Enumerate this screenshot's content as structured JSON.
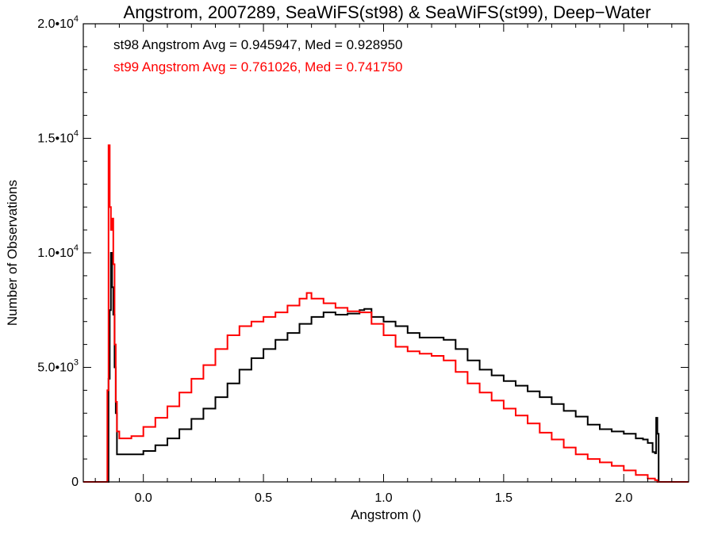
{
  "chart_data": {
    "type": "line",
    "title": "Angstrom, 2007289, SeaWiFS(st98) & SeaWiFS(st99), Deep−Water",
    "xlabel": "Angstrom ()",
    "ylabel": "Number of Observations",
    "xlim": [
      -0.25,
      2.27
    ],
    "ylim": [
      0,
      20000
    ],
    "grid": false,
    "x_ticks": [
      {
        "value": 0.0,
        "label": "0.0"
      },
      {
        "value": 0.5,
        "label": "0.5"
      },
      {
        "value": 1.0,
        "label": "1.0"
      },
      {
        "value": 1.5,
        "label": "1.5"
      },
      {
        "value": 2.0,
        "label": "2.0"
      }
    ],
    "y_ticks": [
      {
        "value": 0,
        "base": "0",
        "exp": ""
      },
      {
        "value": 5000,
        "base": "5.0•10",
        "exp": "3"
      },
      {
        "value": 10000,
        "base": "1.0•10",
        "exp": "4"
      },
      {
        "value": 15000,
        "base": "1.5•10",
        "exp": "4"
      },
      {
        "value": 20000,
        "base": "2.0•10",
        "exp": "4"
      }
    ],
    "annotations": [
      {
        "text": "st98 Angstrom Avg = 0.945947, Med = 0.928950",
        "color": "#000000"
      },
      {
        "text": "st99 Angstrom Avg = 0.761026, Med = 0.741750",
        "color": "#ff0000"
      }
    ],
    "series": [
      {
        "color": "#000000",
        "points": [
          [
            -0.25,
            0
          ],
          [
            -0.15,
            0
          ],
          [
            -0.145,
            4500
          ],
          [
            -0.14,
            7500
          ],
          [
            -0.135,
            10000
          ],
          [
            -0.13,
            8500
          ],
          [
            -0.125,
            7300
          ],
          [
            -0.12,
            5000
          ],
          [
            -0.115,
            3000
          ],
          [
            -0.11,
            1200
          ],
          [
            -0.1,
            1200
          ],
          [
            -0.05,
            1200
          ],
          [
            0.0,
            1350
          ],
          [
            0.05,
            1600
          ],
          [
            0.1,
            1900
          ],
          [
            0.15,
            2300
          ],
          [
            0.2,
            2750
          ],
          [
            0.25,
            3200
          ],
          [
            0.3,
            3700
          ],
          [
            0.35,
            4300
          ],
          [
            0.4,
            4900
          ],
          [
            0.45,
            5400
          ],
          [
            0.5,
            5800
          ],
          [
            0.55,
            6200
          ],
          [
            0.6,
            6500
          ],
          [
            0.65,
            6900
          ],
          [
            0.7,
            7200
          ],
          [
            0.75,
            7400
          ],
          [
            0.8,
            7300
          ],
          [
            0.85,
            7350
          ],
          [
            0.9,
            7500
          ],
          [
            0.92,
            7550
          ],
          [
            0.95,
            7200
          ],
          [
            1.0,
            7000
          ],
          [
            1.05,
            6800
          ],
          [
            1.1,
            6500
          ],
          [
            1.15,
            6300
          ],
          [
            1.2,
            6300
          ],
          [
            1.25,
            6200
          ],
          [
            1.3,
            5800
          ],
          [
            1.35,
            5300
          ],
          [
            1.4,
            4900
          ],
          [
            1.45,
            4650
          ],
          [
            1.5,
            4400
          ],
          [
            1.55,
            4200
          ],
          [
            1.6,
            3950
          ],
          [
            1.65,
            3700
          ],
          [
            1.7,
            3400
          ],
          [
            1.75,
            3100
          ],
          [
            1.8,
            2850
          ],
          [
            1.85,
            2500
          ],
          [
            1.9,
            2300
          ],
          [
            1.95,
            2200
          ],
          [
            2.0,
            2100
          ],
          [
            2.05,
            1900
          ],
          [
            2.08,
            1850
          ],
          [
            2.1,
            1700
          ],
          [
            2.12,
            1300
          ],
          [
            2.13,
            1250
          ],
          [
            2.135,
            2800
          ],
          [
            2.14,
            2100
          ],
          [
            2.145,
            0
          ],
          [
            2.27,
            0
          ]
        ]
      },
      {
        "color": "#ff0000",
        "points": [
          [
            -0.25,
            0
          ],
          [
            -0.155,
            0
          ],
          [
            -0.15,
            4000
          ],
          [
            -0.145,
            14700
          ],
          [
            -0.14,
            12000
          ],
          [
            -0.135,
            11000
          ],
          [
            -0.13,
            11500
          ],
          [
            -0.125,
            9500
          ],
          [
            -0.12,
            6000
          ],
          [
            -0.115,
            3500
          ],
          [
            -0.11,
            2200
          ],
          [
            -0.1,
            1900
          ],
          [
            -0.05,
            2000
          ],
          [
            0.0,
            2400
          ],
          [
            0.05,
            2800
          ],
          [
            0.1,
            3300
          ],
          [
            0.15,
            3900
          ],
          [
            0.2,
            4500
          ],
          [
            0.25,
            5100
          ],
          [
            0.3,
            5800
          ],
          [
            0.35,
            6400
          ],
          [
            0.4,
            6800
          ],
          [
            0.45,
            7000
          ],
          [
            0.5,
            7200
          ],
          [
            0.55,
            7400
          ],
          [
            0.6,
            7700
          ],
          [
            0.65,
            8000
          ],
          [
            0.68,
            8250
          ],
          [
            0.7,
            8000
          ],
          [
            0.75,
            7800
          ],
          [
            0.8,
            7600
          ],
          [
            0.85,
            7450
          ],
          [
            0.9,
            7400
          ],
          [
            0.95,
            6900
          ],
          [
            1.0,
            6400
          ],
          [
            1.05,
            5900
          ],
          [
            1.1,
            5700
          ],
          [
            1.15,
            5600
          ],
          [
            1.2,
            5500
          ],
          [
            1.25,
            5300
          ],
          [
            1.3,
            4800
          ],
          [
            1.35,
            4300
          ],
          [
            1.4,
            3900
          ],
          [
            1.45,
            3550
          ],
          [
            1.5,
            3200
          ],
          [
            1.55,
            2900
          ],
          [
            1.6,
            2550
          ],
          [
            1.65,
            2150
          ],
          [
            1.7,
            1850
          ],
          [
            1.75,
            1500
          ],
          [
            1.8,
            1200
          ],
          [
            1.85,
            1000
          ],
          [
            1.9,
            850
          ],
          [
            1.95,
            700
          ],
          [
            2.0,
            500
          ],
          [
            2.05,
            300
          ],
          [
            2.1,
            150
          ],
          [
            2.13,
            80
          ],
          [
            2.14,
            0
          ],
          [
            2.27,
            0
          ]
        ]
      }
    ]
  }
}
